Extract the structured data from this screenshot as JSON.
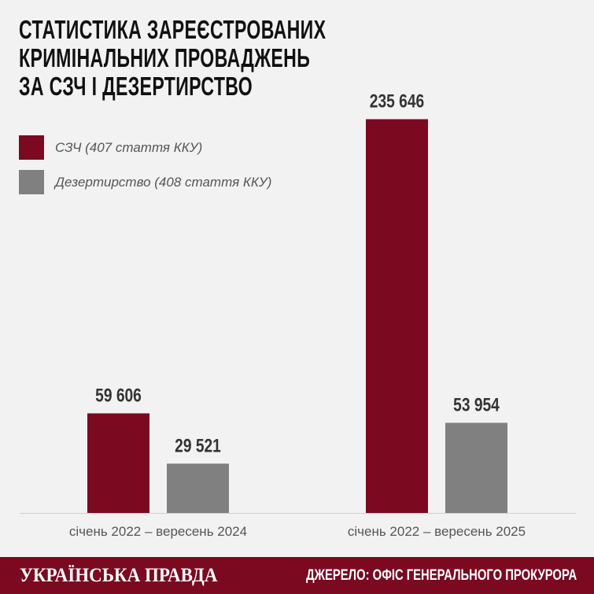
{
  "chart_data": {
    "type": "bar",
    "title": "СТАТИСТИКА ЗАРЕЄСТРОВАНИХ\nКРИМІНАЛЬНИХ ПРОВАДЖЕНЬ\nЗА СЗЧ І ДЕЗЕРТИРСТВО",
    "categories": [
      "січень 2022 – вересень 2024",
      "січень 2022 – вересень 2025"
    ],
    "series": [
      {
        "name": "СЗЧ (407 стаття ККУ)",
        "color": "#7b0a21",
        "values": [
          59606,
          235646
        ],
        "value_labels": [
          "59 606",
          "235 646"
        ]
      },
      {
        "name": "Дезертирство (408 стаття ККУ)",
        "color": "#808080",
        "values": [
          29521,
          53954
        ],
        "value_labels": [
          "29 521",
          "53 954"
        ]
      }
    ],
    "ylim": [
      0,
      250000
    ],
    "brand": "УКРАЇНСЬКА ПРАВДА",
    "source": "ДЖЕРЕЛО: ОФІС ГЕНЕРАЛЬНОГО ПРОКУРОРА"
  }
}
